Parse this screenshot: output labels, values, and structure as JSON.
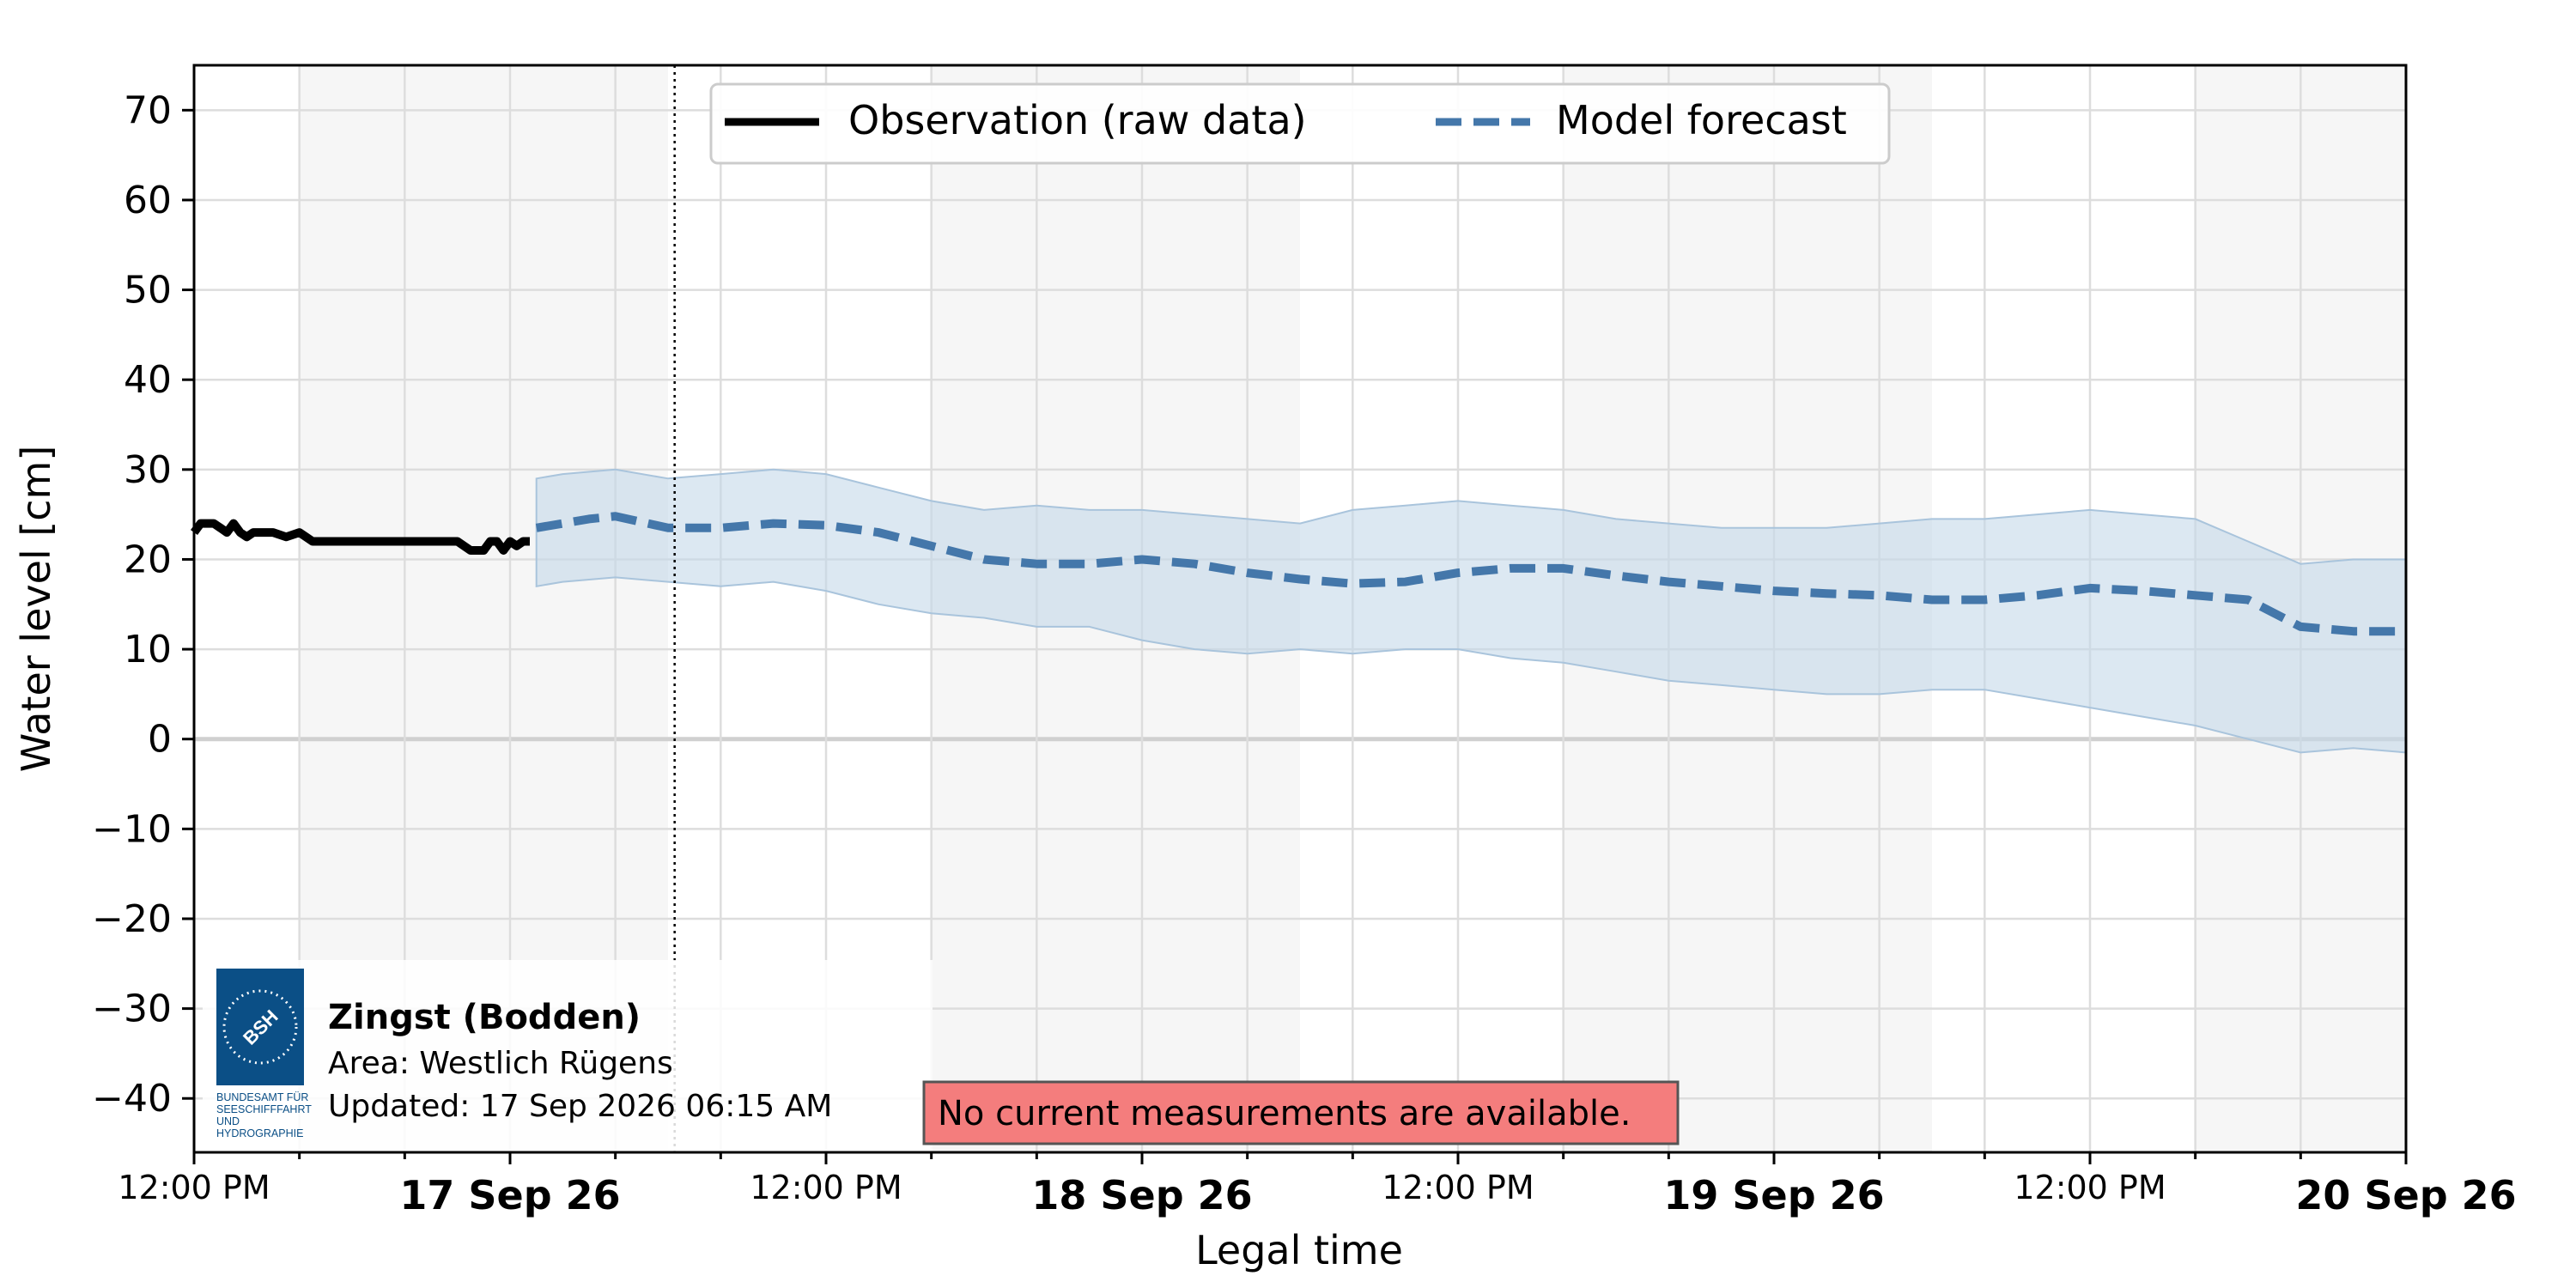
{
  "chart_data": {
    "type": "line",
    "xlabel": "Legal time",
    "ylabel": "Water level [cm]",
    "ylim": [
      -46,
      75
    ],
    "xlim": [
      "2026-09-16 12:00",
      "2026-09-20 00:00"
    ],
    "grid": true,
    "legend_position": "top-center",
    "y_ticks": [
      70,
      60,
      50,
      40,
      30,
      20,
      10,
      0,
      -10,
      -20,
      -30,
      -40
    ],
    "y_tick_labels": [
      "70",
      "60",
      "50",
      "40",
      "30",
      "20",
      "10",
      "0",
      "−10",
      "−20",
      "−30",
      "−40"
    ],
    "x_major_ticks": [
      {
        "time": "2026-09-16 12:00",
        "label": "12:00 PM",
        "bold": false
      },
      {
        "time": "2026-09-17 00:00",
        "label": "17 Sep 26",
        "bold": true
      },
      {
        "time": "2026-09-17 12:00",
        "label": "12:00 PM",
        "bold": false
      },
      {
        "time": "2026-09-18 00:00",
        "label": "18 Sep 26",
        "bold": true
      },
      {
        "time": "2026-09-18 12:00",
        "label": "12:00 PM",
        "bold": false
      },
      {
        "time": "2026-09-19 00:00",
        "label": "19 Sep 26",
        "bold": true
      },
      {
        "time": "2026-09-19 12:00",
        "label": "12:00 PM",
        "bold": false
      },
      {
        "time": "2026-09-20 00:00",
        "label": "20 Sep 26",
        "bold": true
      }
    ],
    "night_bands": [
      [
        "2026-09-16 16:00",
        "2026-09-17 06:00"
      ],
      [
        "2026-09-17 16:00",
        "2026-09-18 06:00"
      ],
      [
        "2026-09-18 16:00",
        "2026-09-19 06:00"
      ],
      [
        "2026-09-19 16:00",
        "2026-09-20 00:00"
      ]
    ],
    "now_marker": "2026-09-17 06:15",
    "series": [
      {
        "name": "Observation (raw data)",
        "color": "#000000",
        "style": "solid",
        "x": [
          "2026-09-16 12:00",
          "2026-09-16 12:15",
          "2026-09-16 12:45",
          "2026-09-16 13:00",
          "2026-09-16 13:15",
          "2026-09-16 13:30",
          "2026-09-16 13:45",
          "2026-09-16 14:00",
          "2026-09-16 14:15",
          "2026-09-16 14:30",
          "2026-09-16 15:00",
          "2026-09-16 15:30",
          "2026-09-16 16:00",
          "2026-09-16 16:15",
          "2026-09-16 16:30",
          "2026-09-16 17:00",
          "2026-09-16 18:00",
          "2026-09-16 19:00",
          "2026-09-16 20:00",
          "2026-09-16 21:00",
          "2026-09-16 22:00",
          "2026-09-16 22:30",
          "2026-09-16 23:00",
          "2026-09-16 23:15",
          "2026-09-16 23:30",
          "2026-09-16 23:45",
          "2026-09-17 00:00",
          "2026-09-17 00:15",
          "2026-09-17 00:30",
          "2026-09-17 00:45"
        ],
        "values": [
          23,
          24,
          24,
          23.5,
          23,
          24,
          23,
          22.5,
          23,
          23,
          23,
          22.5,
          23,
          22.5,
          22,
          22,
          22,
          22,
          22,
          22,
          22,
          21,
          21,
          22,
          22,
          21,
          22,
          21.5,
          22,
          22
        ]
      },
      {
        "name": "Model forecast",
        "color": "#4477aa",
        "style": "dashed",
        "x": [
          "2026-09-17 01:00",
          "2026-09-17 02:00",
          "2026-09-17 03:00",
          "2026-09-17 04:00",
          "2026-09-17 06:00",
          "2026-09-17 08:00",
          "2026-09-17 10:00",
          "2026-09-17 12:00",
          "2026-09-17 14:00",
          "2026-09-17 16:00",
          "2026-09-17 18:00",
          "2026-09-17 20:00",
          "2026-09-17 22:00",
          "2026-09-18 00:00",
          "2026-09-18 02:00",
          "2026-09-18 04:00",
          "2026-09-18 06:00",
          "2026-09-18 08:00",
          "2026-09-18 10:00",
          "2026-09-18 12:00",
          "2026-09-18 14:00",
          "2026-09-18 16:00",
          "2026-09-18 18:00",
          "2026-09-18 20:00",
          "2026-09-18 22:00",
          "2026-09-19 00:00",
          "2026-09-19 02:00",
          "2026-09-19 04:00",
          "2026-09-19 06:00",
          "2026-09-19 08:00",
          "2026-09-19 10:00",
          "2026-09-19 12:00",
          "2026-09-19 14:00",
          "2026-09-19 16:00",
          "2026-09-19 18:00",
          "2026-09-19 20:00",
          "2026-09-19 22:00",
          "2026-09-20 00:00"
        ],
        "values": [
          23.5,
          24,
          24.5,
          24.8,
          23.5,
          23.5,
          24,
          23.8,
          23,
          21.5,
          20,
          19.5,
          19.5,
          20,
          19.5,
          18.5,
          17.8,
          17.3,
          17.5,
          18.5,
          19,
          19,
          18.2,
          17.5,
          17,
          16.5,
          16.2,
          16,
          15.5,
          15.5,
          16,
          16.8,
          16.5,
          16,
          15.5,
          12.5,
          12,
          12
        ]
      }
    ],
    "uncertainty_band": {
      "x": [
        "2026-09-17 01:00",
        "2026-09-17 02:00",
        "2026-09-17 04:00",
        "2026-09-17 06:00",
        "2026-09-17 08:00",
        "2026-09-17 10:00",
        "2026-09-17 12:00",
        "2026-09-17 14:00",
        "2026-09-17 16:00",
        "2026-09-17 18:00",
        "2026-09-17 20:00",
        "2026-09-17 22:00",
        "2026-09-18 00:00",
        "2026-09-18 02:00",
        "2026-09-18 04:00",
        "2026-09-18 06:00",
        "2026-09-18 08:00",
        "2026-09-18 10:00",
        "2026-09-18 12:00",
        "2026-09-18 14:00",
        "2026-09-18 16:00",
        "2026-09-18 18:00",
        "2026-09-18 20:00",
        "2026-09-18 22:00",
        "2026-09-19 00:00",
        "2026-09-19 02:00",
        "2026-09-19 04:00",
        "2026-09-19 06:00",
        "2026-09-19 08:00",
        "2026-09-19 10:00",
        "2026-09-19 12:00",
        "2026-09-19 14:00",
        "2026-09-19 16:00",
        "2026-09-19 18:00",
        "2026-09-19 20:00",
        "2026-09-19 22:00",
        "2026-09-20 00:00"
      ],
      "upper": [
        29,
        29.5,
        30,
        29,
        29.5,
        30,
        29.5,
        28,
        26.5,
        25.5,
        26,
        25.5,
        25.5,
        25,
        24.5,
        24,
        25.5,
        26,
        26.5,
        26,
        25.5,
        24.5,
        24,
        23.5,
        23.5,
        23.5,
        24,
        24.5,
        24.5,
        25,
        25.5,
        25,
        24.5,
        22,
        19.5,
        20,
        20
      ],
      "lower": [
        17,
        17.5,
        18,
        17.5,
        17,
        17.5,
        16.5,
        15,
        14,
        13.5,
        12.5,
        12.5,
        11,
        10,
        9.5,
        10,
        9.5,
        10,
        10,
        9,
        8.5,
        7.5,
        6.5,
        6,
        5.5,
        5,
        5,
        5.5,
        5.5,
        4.5,
        3.5,
        2.5,
        1.5,
        0,
        -1.5,
        -1,
        -1.5
      ]
    }
  },
  "legend": {
    "observation_label": "Observation (raw data)",
    "forecast_label": "Model forecast"
  },
  "station": {
    "name": "Zingst (Bodden)",
    "area": "Area: Westlich Rügens",
    "updated": "Updated: 17 Sep 2026 06:15 AM"
  },
  "logo": {
    "mark_text": "BSH",
    "caption_lines": [
      "BUNDESAMT FÜR",
      "SEESCHIFFFAHRT",
      "UND",
      "HYDROGRAPHIE"
    ],
    "color": "#0b4f86"
  },
  "warning": {
    "text": "No current measurements are available.",
    "color": "#f47d7d"
  },
  "colors": {
    "forecast_line": "#4477aa",
    "band_fill": "#c5d9ea",
    "night_shade": "#f6f6f6",
    "grid": "#dddddd"
  }
}
